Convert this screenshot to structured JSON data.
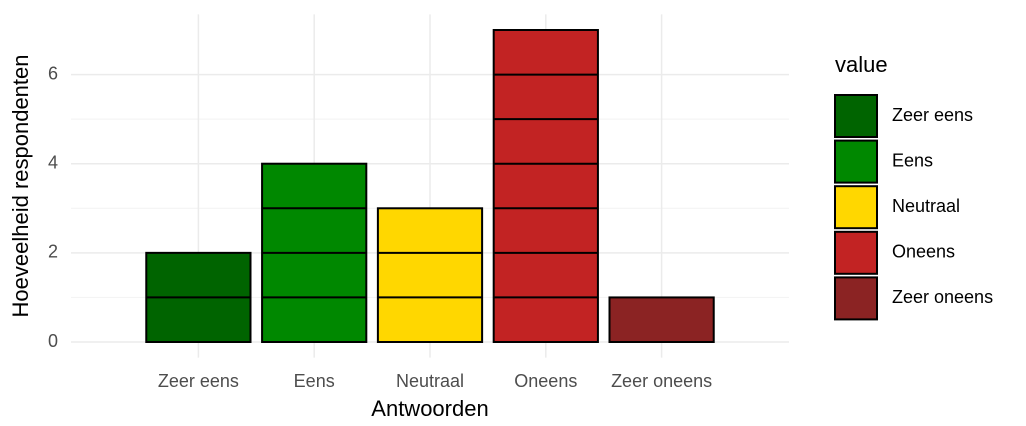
{
  "chart_data": {
    "type": "bar",
    "x_label": "Antwoorden",
    "y_label": "Hoeveelheid respondenten",
    "categories": [
      "Zeer eens",
      "Eens",
      "Neutraal",
      "Oneens",
      "Zeer oneens"
    ],
    "values": [
      2,
      4,
      3,
      7,
      1
    ],
    "colors": [
      "#006400",
      "#008800",
      "#ffd700",
      "#c22323",
      "#8b2323"
    ],
    "ylim": [
      -0.35,
      7.35
    ],
    "yticks": [
      0,
      2,
      4,
      6
    ],
    "grid": true,
    "legend": {
      "title": "value",
      "position": "right"
    }
  }
}
